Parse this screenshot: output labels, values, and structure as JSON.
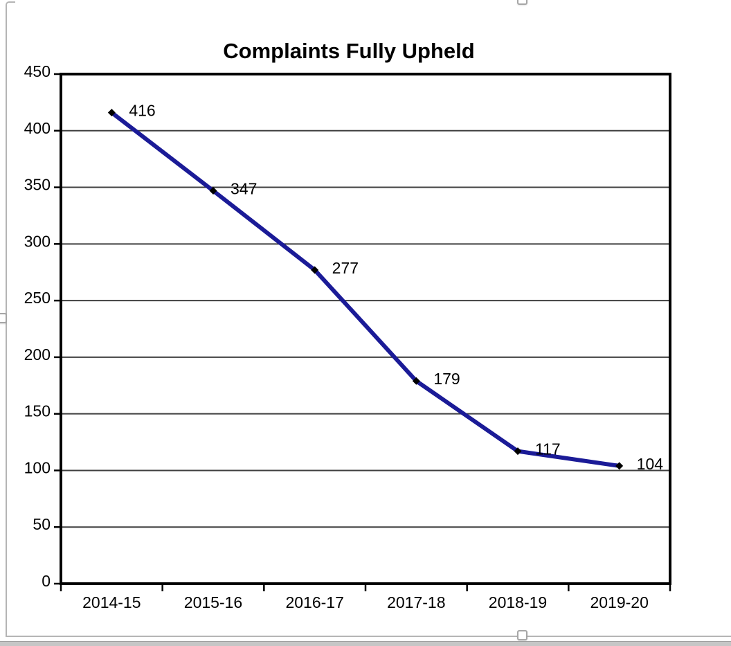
{
  "chart_data": {
    "type": "line",
    "title": "Complaints Fully Upheld",
    "categories": [
      "2014-15",
      "2015-16",
      "2016-17",
      "2017-18",
      "2018-19",
      "2019-20"
    ],
    "values": [
      416,
      347,
      277,
      179,
      117,
      104
    ],
    "data_labels": [
      "416",
      "347",
      "277",
      "179",
      "117",
      "104"
    ],
    "xlabel": "",
    "ylabel": "",
    "ylim": [
      0,
      450
    ],
    "ytick_step": 50,
    "yticks": [
      "0",
      "50",
      "100",
      "150",
      "200",
      "250",
      "300",
      "350",
      "400",
      "450"
    ],
    "grid": true,
    "legend": false,
    "marker": "diamond",
    "colors": {
      "line": "#1b1b97",
      "marker": "#000000",
      "grid": "#3f3f3f",
      "frame": "#000000",
      "text": "#000000",
      "background": "#ffffff"
    }
  },
  "selection": {
    "object": "chart",
    "handles": [
      "top-middle",
      "left-middle",
      "bottom-middle"
    ]
  }
}
